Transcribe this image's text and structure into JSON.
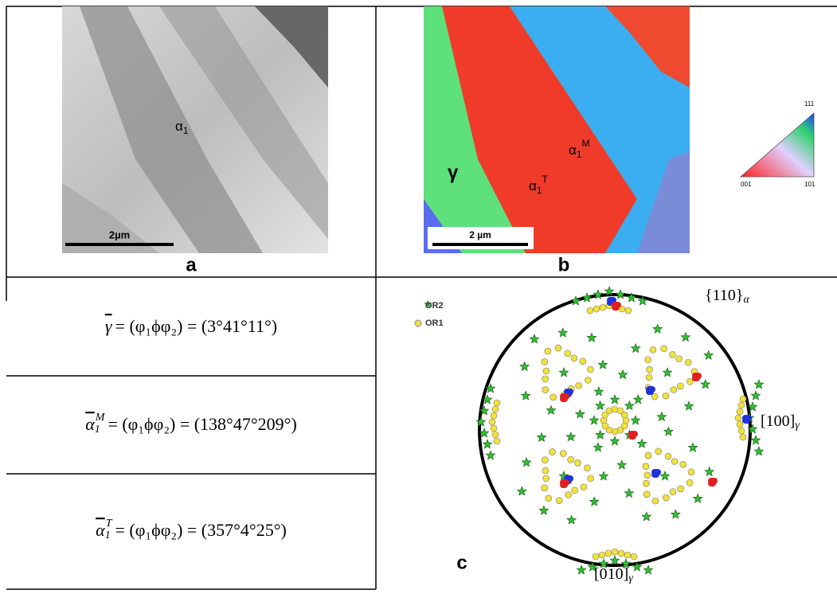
{
  "panel_a": {
    "letter": "a",
    "phase_label": {
      "base": "α",
      "sub": "1"
    },
    "scale_bar": "2µm"
  },
  "panel_b": {
    "letter": "b",
    "gamma": "γ",
    "alpha_t": {
      "base": "α",
      "sub": "1",
      "sup": "T"
    },
    "alpha_m": {
      "base": "α",
      "sub": "1",
      "sup": "M"
    },
    "scale_bar": "2 µm",
    "ipf_key": [
      "111",
      "001",
      "101"
    ]
  },
  "euler_angles": [
    {
      "lhs": {
        "base": "γ"
      },
      "rhs": "= (φ₁ϕφ₂) = (3°41°11°)"
    },
    {
      "lhs": {
        "base": "α",
        "sub": "1",
        "sup": "M"
      },
      "rhs": "= (φ₁ϕφ₂) = (138°47°209°)"
    },
    {
      "lhs": {
        "base": "α",
        "sub": "1",
        "sup": "T"
      },
      "rhs": "= (φ₁ϕφ₂) = (357°4°25°)"
    }
  ],
  "panel_c": {
    "letter": "c",
    "legend": [
      "OR2",
      "OR1"
    ],
    "pole_labels": [
      {
        "base": "{110}",
        "sub": "α"
      },
      {
        "base": "[100]",
        "sub": "γ"
      },
      {
        "base": "[010]",
        "sub": "γ"
      }
    ]
  }
}
